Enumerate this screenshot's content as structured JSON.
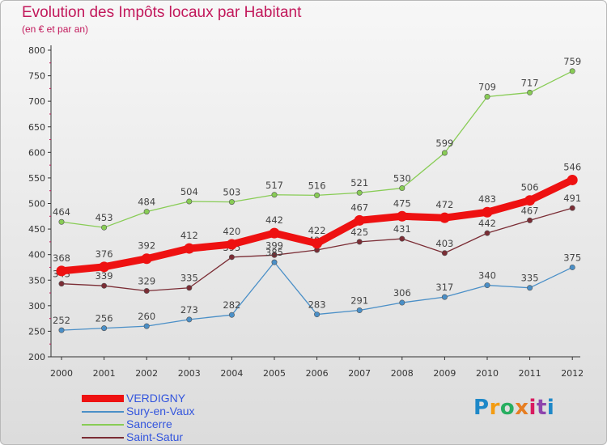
{
  "chart_data": {
    "type": "line",
    "title": "Evolution des Impôts locaux par Habitant",
    "subtitle": "(en € et par an)",
    "x": [
      "2000",
      "2001",
      "2002",
      "2003",
      "2004",
      "2005",
      "2006",
      "2007",
      "2008",
      "2009",
      "2010",
      "2011",
      "2012"
    ],
    "y_ticks": [
      200,
      250,
      300,
      350,
      400,
      450,
      500,
      550,
      600,
      650,
      700,
      750,
      800
    ],
    "ylim": [
      200,
      800
    ],
    "grid": false,
    "legend_position": "bottom-left",
    "series": [
      {
        "name": "Saint-Satur",
        "color": "#7b2d35",
        "values": [
          343,
          339,
          329,
          335,
          395,
          399,
          409,
          425,
          431,
          403,
          442,
          467,
          491
        ],
        "labels": [
          "343",
          "339",
          "329",
          "335",
          "395",
          "",
          "409",
          "425",
          "431",
          "403",
          "442",
          "467",
          "491"
        ]
      },
      {
        "name": "Sury-en-Vaux",
        "color": "#4a8fc7",
        "values": [
          252,
          256,
          260,
          273,
          282,
          385,
          283,
          291,
          306,
          317,
          340,
          335,
          375
        ],
        "labels": [
          "252",
          "256",
          "260",
          "273",
          "282",
          "385",
          "283",
          "291",
          "306",
          "317",
          "340",
          "335",
          "375"
        ]
      },
      {
        "name": "Sancerre",
        "color": "#88cc55",
        "values": [
          464,
          453,
          484,
          504,
          503,
          517,
          516,
          521,
          530,
          599,
          709,
          717,
          759
        ],
        "labels": [
          "464",
          "453",
          "484",
          "504",
          "503",
          "517",
          "516",
          "521",
          "530",
          "599",
          "709",
          "717",
          "759"
        ]
      },
      {
        "name": "VERDIGNY",
        "color": "#ee1111",
        "values": [
          368,
          376,
          392,
          412,
          420,
          442,
          422,
          467,
          475,
          472,
          483,
          506,
          546
        ],
        "labels": [
          "368",
          "376",
          "392",
          "412",
          "420",
          "442",
          "422",
          "467",
          "475",
          "472",
          "483",
          "506",
          "546"
        ]
      }
    ],
    "legend_order": [
      "VERDIGNY",
      "Sury-en-Vaux",
      "Sancerre",
      "Saint-Satur"
    ],
    "annotations": {
      "2005_overlap": "399"
    }
  },
  "logo": {
    "letters": [
      "P",
      "r",
      "o",
      "x",
      "i",
      "t",
      "i"
    ]
  }
}
